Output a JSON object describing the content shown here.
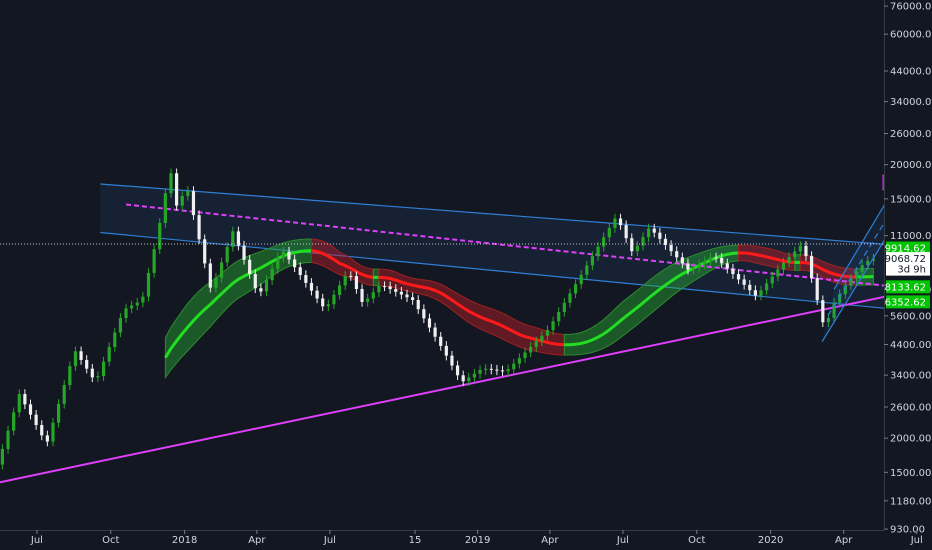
{
  "chart_data": {
    "type": "candlestick",
    "title": "",
    "y_scale": "log",
    "ylim": [
      780,
      80000
    ],
    "x_range": [
      "2017-05-16",
      "2020-07-20"
    ],
    "y_ticks": [
      76000,
      60000,
      44000,
      34000,
      26000,
      20000,
      15000,
      11000,
      9068.72,
      7000,
      5600,
      4400,
      3400,
      2600,
      2000,
      1500,
      1180,
      930
    ],
    "y_tick_labels": [
      "76000.00",
      "60000.00",
      "44000.00",
      "34000.00",
      "26000.00",
      "20000.00",
      "15000.00",
      "11000.00",
      "",
      "7000.00",
      "5600.00",
      "4400.00",
      "3400.00",
      "2600.00",
      "2000.00",
      "1500.00",
      "1180.00",
      "930.00"
    ],
    "x_ticks": [
      {
        "label": "Jul",
        "date": "2017-07-01"
      },
      {
        "label": "Oct",
        "date": "2017-10-01"
      },
      {
        "label": "2018",
        "date": "2018-01-01"
      },
      {
        "label": "Apr",
        "date": "2018-04-01"
      },
      {
        "label": "Jul",
        "date": "2018-07-01"
      },
      {
        "label": "15",
        "date": "2018-10-15"
      },
      {
        "label": "2019",
        "date": "2019-01-01"
      },
      {
        "label": "Apr",
        "date": "2019-04-01"
      },
      {
        "label": "Jul",
        "date": "2019-07-01"
      },
      {
        "label": "Oct",
        "date": "2019-10-01"
      },
      {
        "label": "2020",
        "date": "2020-01-01"
      },
      {
        "label": "Apr",
        "date": "2020-04-01"
      },
      {
        "label": "Jul",
        "date": "2020-07-01"
      }
    ],
    "price_path": [
      [
        "2017-05-16",
        1600
      ],
      [
        "2017-06-12",
        2900
      ],
      [
        "2017-07-16",
        1900
      ],
      [
        "2017-08-20",
        4200
      ],
      [
        "2017-09-15",
        3200
      ],
      [
        "2017-10-20",
        5900
      ],
      [
        "2017-11-12",
        6400
      ],
      [
        "2017-12-01",
        11000
      ],
      [
        "2017-12-17",
        19500
      ],
      [
        "2017-12-24",
        14000
      ],
      [
        "2018-01-07",
        16500
      ],
      [
        "2018-02-06",
        6900
      ],
      [
        "2018-03-05",
        11400
      ],
      [
        "2018-04-06",
        6600
      ],
      [
        "2018-05-05",
        9800
      ],
      [
        "2018-06-28",
        5900
      ],
      [
        "2018-07-27",
        8200
      ],
      [
        "2018-08-14",
        6200
      ],
      [
        "2018-09-05",
        7300
      ],
      [
        "2018-10-15",
        6400
      ],
      [
        "2018-11-20",
        4300
      ],
      [
        "2018-12-15",
        3200
      ],
      [
        "2019-01-10",
        3600
      ],
      [
        "2019-02-08",
        3500
      ],
      [
        "2019-04-02",
        5000
      ],
      [
        "2019-05-14",
        8000
      ],
      [
        "2019-06-26",
        13000
      ],
      [
        "2019-07-16",
        9500
      ],
      [
        "2019-08-06",
        11800
      ],
      [
        "2019-09-24",
        8200
      ],
      [
        "2019-10-25",
        9300
      ],
      [
        "2019-12-17",
        6600
      ],
      [
        "2020-01-19",
        8700
      ],
      [
        "2020-02-13",
        10300
      ],
      [
        "2020-03-12",
        4900
      ],
      [
        "2020-03-19",
        6000
      ],
      [
        "2020-04-07",
        7300
      ],
      [
        "2020-04-30",
        8800
      ],
      [
        "2020-05-10",
        9068.72
      ]
    ],
    "candle_colors": {
      "up": "#26a626",
      "down": "#f0f0f0"
    },
    "current_price": 9068.72,
    "price_tags": [
      {
        "label": "9914.62",
        "value": 9914.62,
        "color": "#00c400"
      },
      {
        "label": "9068.72",
        "value": 9068.72,
        "color": "#ffffff"
      },
      {
        "label": "3d 9h",
        "value": 8300,
        "color": "#ffffff"
      },
      {
        "label": "8133.62",
        "value": 7150,
        "color": "#00c400"
      },
      {
        "label": "6352.62",
        "value": 6300,
        "color": "#00c400"
      }
    ],
    "annotations": [
      {
        "type": "channel",
        "name": "descending channel",
        "color": "#2f7fd6",
        "upper": [
          [
            "2017-09-18",
            17000
          ],
          [
            "2020-07-05",
            10000
          ]
        ],
        "lower": [
          [
            "2017-09-18",
            11300
          ],
          [
            "2020-07-05",
            5800
          ]
        ]
      },
      {
        "type": "trendline",
        "name": "magenta dashed top",
        "color": "#e040fb",
        "style": "dashed",
        "points": [
          [
            "2017-10-20",
            14300
          ],
          [
            "2020-07-05",
            7000
          ]
        ]
      },
      {
        "type": "trendline",
        "name": "magenta rising support",
        "color": "#e040fb",
        "points": [
          [
            "2017-05-16",
            1380
          ],
          [
            "2020-07-05",
            7000
          ]
        ]
      },
      {
        "type": "channel",
        "name": "rising channel",
        "color": "#2f7fd6",
        "lower": [
          [
            "2020-03-05",
            4500
          ],
          [
            "2020-07-01",
            16500
          ]
        ],
        "upper": [
          [
            "2020-03-20",
            7000
          ],
          [
            "2020-07-01",
            22500
          ]
        ]
      },
      {
        "type": "box",
        "name": "target zone",
        "color": "#9c27b0",
        "from": [
          "2020-05-20",
          18300
        ],
        "to": [
          "2020-06-15",
          16200
        ]
      }
    ]
  }
}
